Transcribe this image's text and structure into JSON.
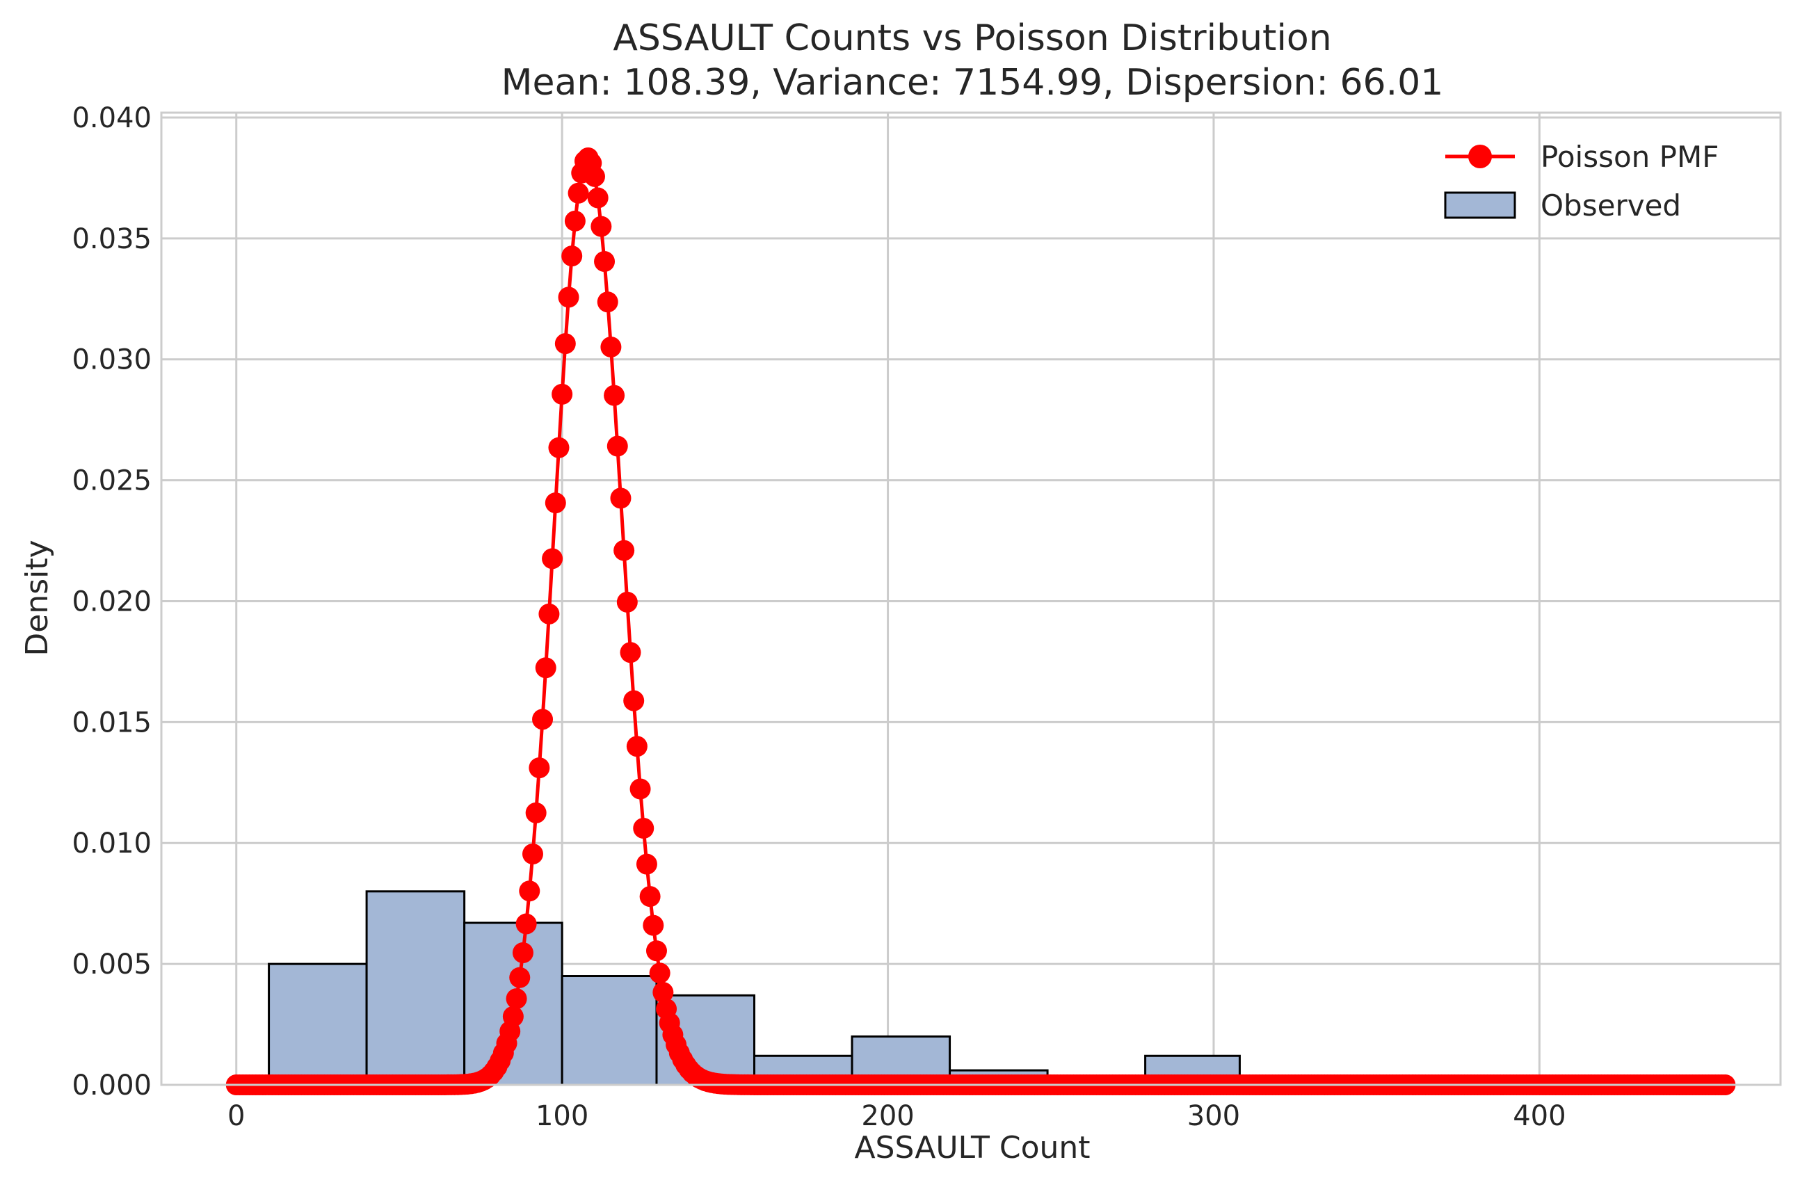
{
  "chart_data": {
    "type": "histogram+line",
    "title": "ASSAULT Counts vs Poisson Distribution",
    "subtitle": "Mean: 108.39, Variance: 7154.99, Dispersion: 66.01",
    "xlabel": "ASSAULT Count",
    "ylabel": "Density",
    "xlim": [
      -23,
      474
    ],
    "ylim": [
      0,
      0.0402
    ],
    "grid": true,
    "legend_position": "top-right",
    "x_ticks": [
      {
        "value": 0,
        "label": "0"
      },
      {
        "value": 100,
        "label": "100"
      },
      {
        "value": 200,
        "label": "200"
      },
      {
        "value": 300,
        "label": "300"
      },
      {
        "value": 400,
        "label": "400"
      }
    ],
    "y_ticks": [
      {
        "value": 0,
        "label": "0.000"
      },
      {
        "value": 0.005,
        "label": "0.005"
      },
      {
        "value": 0.01,
        "label": "0.010"
      },
      {
        "value": 0.015,
        "label": "0.015"
      },
      {
        "value": 0.02,
        "label": "0.020"
      },
      {
        "value": 0.025,
        "label": "0.025"
      },
      {
        "value": 0.03,
        "label": "0.030"
      },
      {
        "value": 0.035,
        "label": "0.035"
      },
      {
        "value": 0.04,
        "label": "0.040"
      }
    ],
    "observed": {
      "name": "Observed",
      "color": "#a3b7d6",
      "edge_color": "#000000",
      "bins": [
        {
          "x0": 10,
          "x1": 40,
          "density": 0.005
        },
        {
          "x0": 40,
          "x1": 70,
          "density": 0.008
        },
        {
          "x0": 70,
          "x1": 100,
          "density": 0.0067
        },
        {
          "x0": 100,
          "x1": 129,
          "density": 0.0045
        },
        {
          "x0": 129,
          "x1": 159,
          "density": 0.0037
        },
        {
          "x0": 159,
          "x1": 189,
          "density": 0.0012
        },
        {
          "x0": 189,
          "x1": 219,
          "density": 0.002
        },
        {
          "x0": 219,
          "x1": 249,
          "density": 0.0006
        },
        {
          "x0": 249,
          "x1": 279,
          "density": 0.0
        },
        {
          "x0": 279,
          "x1": 308,
          "density": 0.0012
        }
      ]
    },
    "poisson": {
      "name": "Poisson PMF",
      "color": "#ff0000",
      "lambda": 108.39,
      "x_min": 0,
      "x_max": 457
    }
  }
}
